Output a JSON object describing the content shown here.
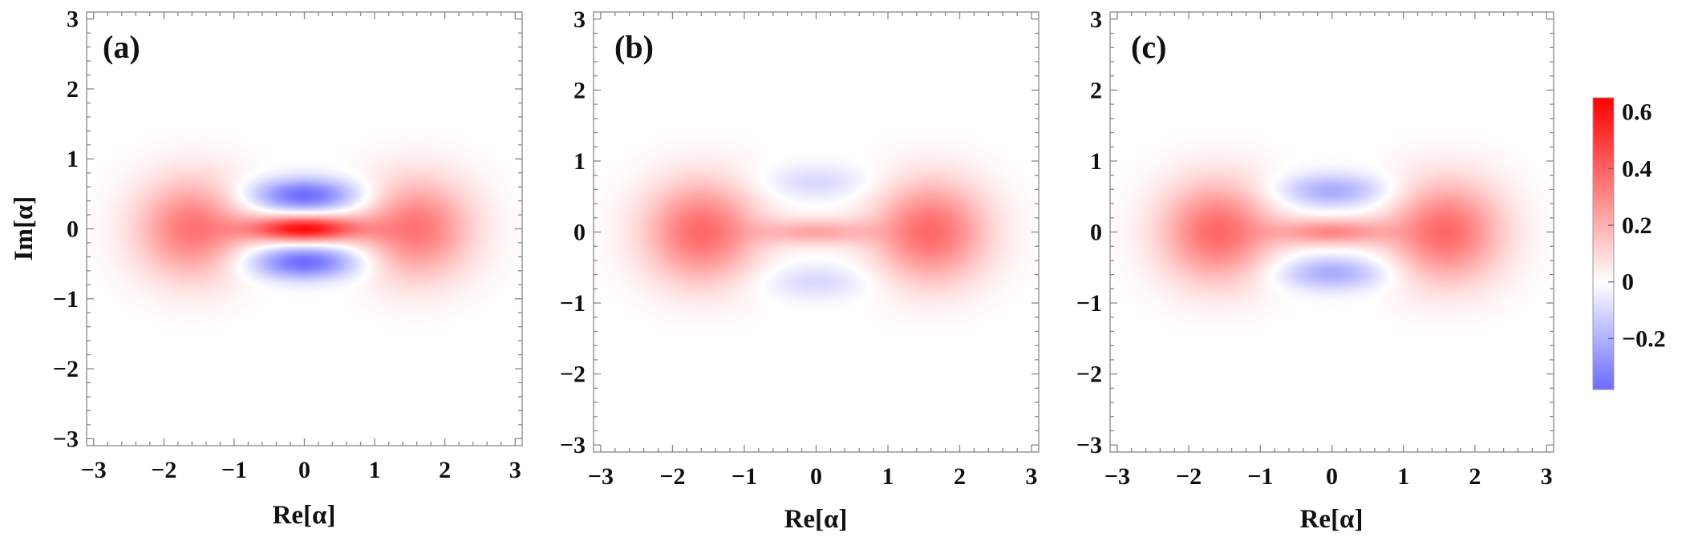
{
  "chart_data": [
    {
      "type": "heatmap",
      "panel_label": "(a)",
      "xlabel": "Re[α]",
      "ylabel": "Im[α]",
      "xlim": [
        -3.1,
        3.1
      ],
      "ylim": [
        -3.1,
        3.1
      ],
      "xticks": [
        "−3",
        "−2",
        "−1",
        "0",
        "1",
        "2",
        "3"
      ],
      "yticks": [
        "−3",
        "−2",
        "−1",
        "0",
        "1",
        "2",
        "3"
      ],
      "features": [
        {
          "kind": "positive_peak",
          "x": -1.6,
          "y": 0,
          "value": 0.35
        },
        {
          "kind": "positive_peak",
          "x": 1.6,
          "y": 0,
          "value": 0.35
        },
        {
          "kind": "positive_peak",
          "x": 0,
          "y": 0,
          "value": 0.62
        },
        {
          "kind": "negative_lobe",
          "x": 0,
          "y": 0.48,
          "value": -0.38
        },
        {
          "kind": "negative_lobe",
          "x": 0,
          "y": -0.48,
          "value": -0.38
        }
      ]
    },
    {
      "type": "heatmap",
      "panel_label": "(b)",
      "xlabel": "Re[α]",
      "ylabel": "",
      "xlim": [
        -3.1,
        3.1
      ],
      "ylim": [
        -3.1,
        3.1
      ],
      "xticks": [
        "−3",
        "−2",
        "−1",
        "0",
        "1",
        "2",
        "3"
      ],
      "yticks": [
        "−3",
        "−2",
        "−1",
        "0",
        "1",
        "2",
        "3"
      ],
      "features": [
        {
          "kind": "positive_peak",
          "x": -1.6,
          "y": 0,
          "value": 0.38
        },
        {
          "kind": "positive_peak",
          "x": 1.6,
          "y": 0,
          "value": 0.38
        },
        {
          "kind": "positive_peak",
          "x": 0,
          "y": 0,
          "value": 0.22
        },
        {
          "kind": "negative_lobe",
          "x": 0,
          "y": 0.7,
          "value": -0.1
        },
        {
          "kind": "negative_lobe",
          "x": 0,
          "y": -0.7,
          "value": -0.1
        }
      ]
    },
    {
      "type": "heatmap",
      "panel_label": "(c)",
      "xlabel": "Re[α]",
      "ylabel": "",
      "xlim": [
        -3.1,
        3.1
      ],
      "ylim": [
        -3.1,
        3.1
      ],
      "xticks": [
        "−3",
        "−2",
        "−1",
        "0",
        "1",
        "2",
        "3"
      ],
      "yticks": [
        "−3",
        "−2",
        "−1",
        "0",
        "1",
        "2",
        "3"
      ],
      "features": [
        {
          "kind": "positive_peak",
          "x": -1.6,
          "y": 0,
          "value": 0.38
        },
        {
          "kind": "positive_peak",
          "x": 1.6,
          "y": 0,
          "value": 0.38
        },
        {
          "kind": "positive_peak",
          "x": 0,
          "y": 0,
          "value": 0.3
        },
        {
          "kind": "negative_lobe",
          "x": 0,
          "y": 0.58,
          "value": -0.22
        },
        {
          "kind": "negative_lobe",
          "x": 0,
          "y": -0.58,
          "value": -0.22
        }
      ]
    }
  ],
  "colorbar": {
    "range": [
      -0.38,
      0.65
    ],
    "ticks": [
      {
        "value": 0.6,
        "label": "0.6"
      },
      {
        "value": 0.4,
        "label": "0.4"
      },
      {
        "value": 0.2,
        "label": "0.2"
      },
      {
        "value": 0.0,
        "label": "0"
      },
      {
        "value": -0.2,
        "label": "−0.2"
      }
    ],
    "colors": {
      "positive": "#ff0000",
      "zero": "#ffffff",
      "negative": "#6b6bff"
    }
  }
}
